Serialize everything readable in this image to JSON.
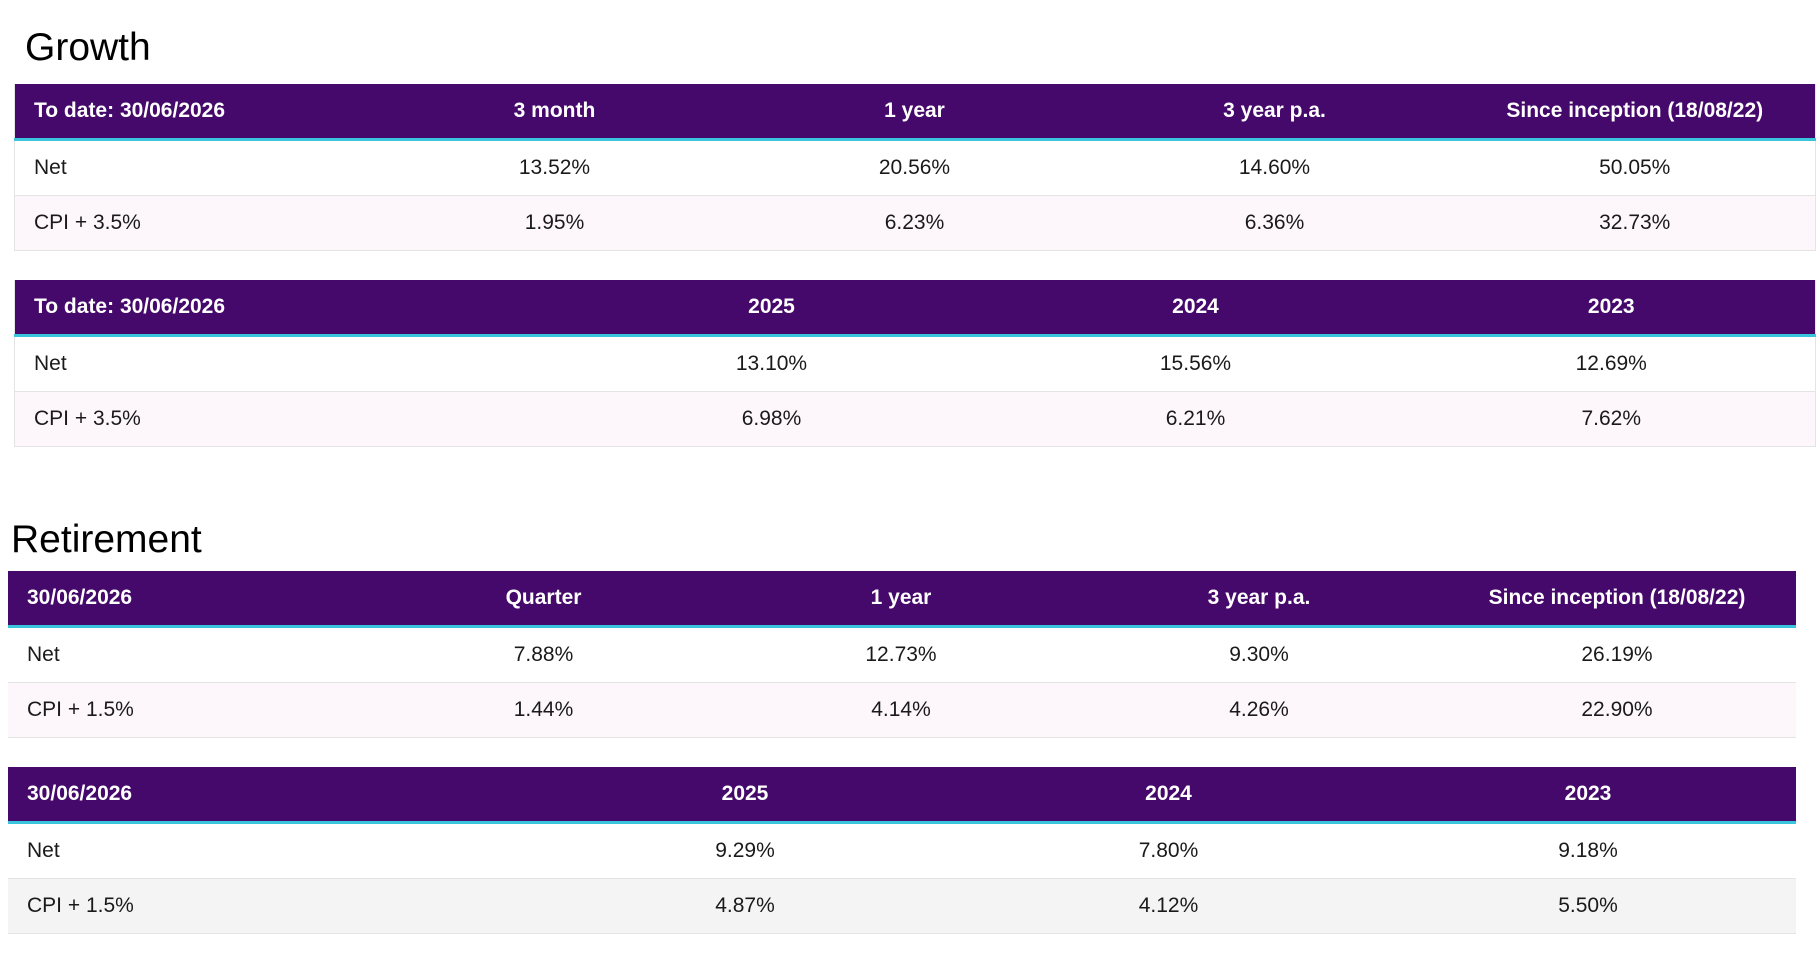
{
  "growth": {
    "title": "Growth",
    "periods_table": {
      "headers": [
        "To date: 30/06/2026",
        "3 month",
        "1 year",
        "3 year p.a.",
        "Since inception (18/08/22)"
      ],
      "rows": [
        [
          "Net",
          "13.52%",
          "20.56%",
          "14.60%",
          "50.05%"
        ],
        [
          "CPI + 3.5%",
          "1.95%",
          "6.23%",
          "6.36%",
          "32.73%"
        ]
      ]
    },
    "years_table": {
      "headers": [
        "To date: 30/06/2026",
        "2025",
        "2024",
        "2023"
      ],
      "rows": [
        [
          "Net",
          "13.10%",
          "15.56%",
          "12.69%"
        ],
        [
          "CPI + 3.5%",
          "6.98%",
          "6.21%",
          "7.62%"
        ]
      ]
    }
  },
  "retirement": {
    "title": "Retirement",
    "periods_table": {
      "headers": [
        "30/06/2026",
        "Quarter",
        "1 year",
        "3 year p.a.",
        "Since inception (18/08/22)"
      ],
      "rows": [
        [
          "Net",
          "7.88%",
          "12.73%",
          "9.30%",
          "26.19%"
        ],
        [
          "CPI + 1.5%",
          "1.44%",
          "4.14%",
          "4.26%",
          "22.90%"
        ]
      ]
    },
    "years_table": {
      "headers": [
        "30/06/2026",
        "2025",
        "2024",
        "2023"
      ],
      "rows": [
        [
          "Net",
          "9.29%",
          "7.80%",
          "9.18%"
        ],
        [
          "CPI + 1.5%",
          "4.87%",
          "4.12%",
          "5.50%"
        ]
      ]
    }
  },
  "colors": {
    "header_bg": "#45096b",
    "header_accent": "#39c6dc",
    "alt_row_bg": "#fdf7fb"
  }
}
